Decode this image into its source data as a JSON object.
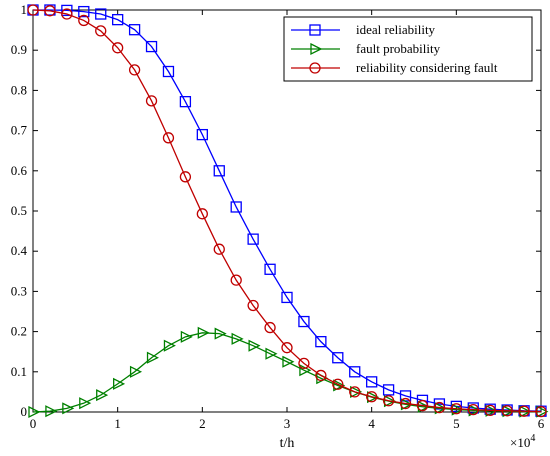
{
  "chart_data": {
    "type": "line",
    "xlabel": "t/h",
    "x_multiplier_label": "×10",
    "x_multiplier_exp": "4",
    "xlim": [
      0,
      6
    ],
    "ylim": [
      0,
      1
    ],
    "x_ticks": [
      "0",
      "1",
      "2",
      "3",
      "4",
      "5",
      "6"
    ],
    "y_ticks": [
      "0",
      "0.1",
      "0.2",
      "0.3",
      "0.4",
      "0.5",
      "0.6",
      "0.7",
      "0.8",
      "0.9",
      "1"
    ],
    "x_tick_values": [
      0,
      1,
      2,
      3,
      4,
      5,
      6
    ],
    "y_tick_values": [
      0,
      0.1,
      0.2,
      0.3,
      0.4,
      0.5,
      0.6,
      0.7,
      0.8,
      0.9,
      1
    ],
    "legend_position": "top-right",
    "x": [
      0,
      0.2,
      0.4,
      0.6,
      0.8,
      1.0,
      1.2,
      1.4,
      1.6,
      1.8,
      2.0,
      2.2,
      2.4,
      2.6,
      2.8,
      3.0,
      3.2,
      3.4,
      3.6,
      3.8,
      4.0,
      4.2,
      4.4,
      4.6,
      4.8,
      5.0,
      5.2,
      5.4,
      5.6,
      5.8,
      6.0
    ],
    "series": [
      {
        "name": "ideal reliability",
        "color": "#0000ff",
        "marker": "square",
        "values": [
          1.0,
          1.0,
          0.999,
          0.996,
          0.99,
          0.976,
          0.951,
          0.909,
          0.847,
          0.772,
          0.69,
          0.6,
          0.51,
          0.43,
          0.355,
          0.285,
          0.225,
          0.175,
          0.135,
          0.1,
          0.075,
          0.055,
          0.04,
          0.029,
          0.02,
          0.014,
          0.01,
          0.007,
          0.005,
          0.003,
          0.002
        ]
      },
      {
        "name": "fault probability",
        "color": "#008000",
        "marker": "triangle-right",
        "values": [
          0.0,
          0.002,
          0.009,
          0.022,
          0.042,
          0.07,
          0.1,
          0.135,
          0.165,
          0.187,
          0.197,
          0.195,
          0.182,
          0.165,
          0.145,
          0.125,
          0.104,
          0.084,
          0.066,
          0.05,
          0.037,
          0.027,
          0.019,
          0.013,
          0.009,
          0.006,
          0.004,
          0.003,
          0.002,
          0.001,
          0.001
        ]
      },
      {
        "name": "reliability considering fault",
        "color": "#c00000",
        "marker": "circle",
        "values": [
          1.0,
          0.998,
          0.99,
          0.974,
          0.948,
          0.906,
          0.851,
          0.774,
          0.682,
          0.585,
          0.493,
          0.405,
          0.328,
          0.265,
          0.21,
          0.16,
          0.121,
          0.091,
          0.069,
          0.05,
          0.038,
          0.028,
          0.021,
          0.016,
          0.011,
          0.008,
          0.006,
          0.004,
          0.003,
          0.002,
          0.001
        ]
      }
    ]
  }
}
